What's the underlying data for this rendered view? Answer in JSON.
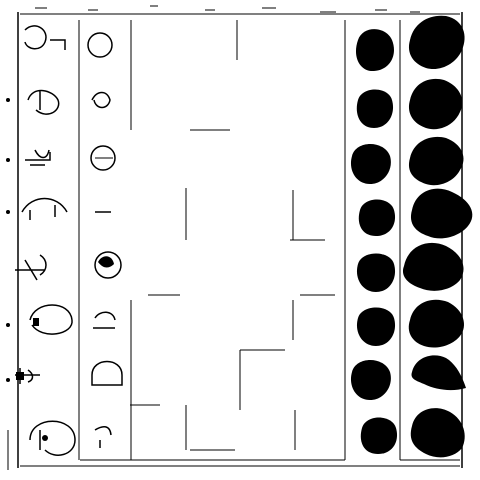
{
  "image": {
    "kind": "binarized scanned grid sheet",
    "rows": 8,
    "columns": [
      "symbol-a",
      "symbol-b",
      "empty-1",
      "empty-2",
      "empty-3",
      "blob-small",
      "blob-large"
    ],
    "colors": {
      "ink": "#000000",
      "paper": "#ffffff"
    }
  }
}
